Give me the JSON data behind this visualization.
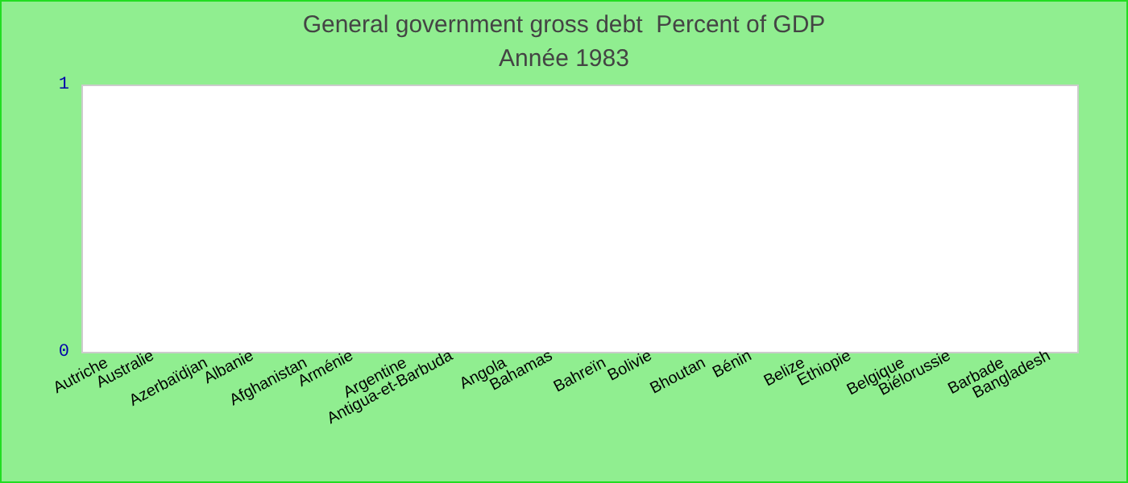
{
  "chart_data": {
    "type": "bar",
    "title": "General government gross debt  Percent of GDP",
    "subtitle": "Année 1983",
    "categories": [
      "Autriche",
      "Australie",
      "Azerbaïdjan",
      "Albanie",
      "Afghanistan",
      "Arménie",
      "Argentine",
      "Antigua-et-Barbuda",
      "Angola",
      "Bahamas",
      "Bahreïn",
      "Bolivie",
      "Bhoutan",
      "Bénin",
      "Belize",
      "Ethiopie",
      "Belgique",
      "Biélorussie",
      "Barbade",
      "Bangladesh"
    ],
    "values": [
      null,
      null,
      null,
      null,
      null,
      null,
      null,
      null,
      null,
      null,
      null,
      null,
      null,
      null,
      null,
      null,
      null,
      null,
      null,
      null
    ],
    "ylim": [
      0,
      1
    ],
    "yticks": [
      0,
      1
    ]
  }
}
